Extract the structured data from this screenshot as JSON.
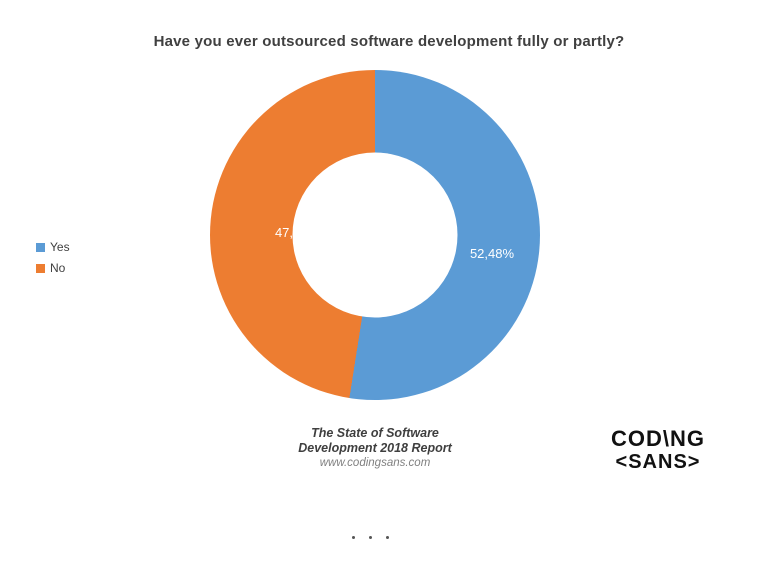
{
  "chart_data": {
    "type": "pie",
    "donut": true,
    "hole_ratio": 0.5,
    "title": "Have you ever outsourced software development fully or partly?",
    "categories": [
      "Yes",
      "No"
    ],
    "values": [
      52.48,
      47.52
    ],
    "labels": [
      "52,48%",
      "47,52%"
    ],
    "colors": [
      "#5B9BD5",
      "#ED7D31"
    ],
    "legend_position": "left",
    "start_angle_deg": 0,
    "direction": "clockwise"
  },
  "footer": {
    "source_line1": "The State of Software",
    "source_line2": "Development 2018 Report",
    "source_url": "www.codingsans.com"
  },
  "logo": {
    "line1": "COD\\NG",
    "line2": "<SANS>"
  }
}
